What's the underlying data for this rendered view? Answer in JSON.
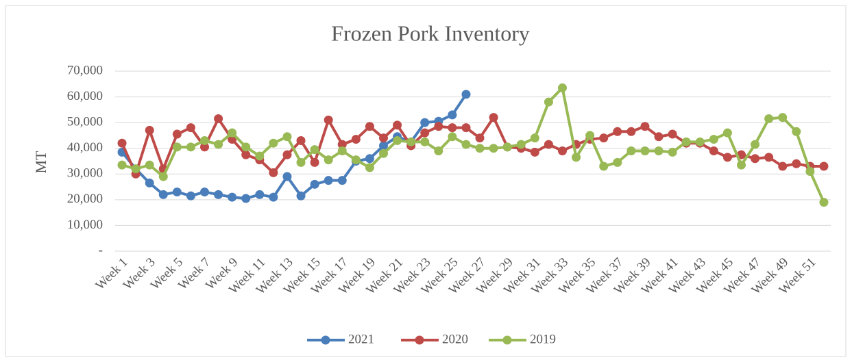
{
  "chart_data": {
    "type": "line",
    "title": "Frozen Pork Inventory",
    "y_label": "MT",
    "categories": [
      "Week 1",
      null,
      "Week 3",
      null,
      "Week 5",
      null,
      "Week 7",
      null,
      "Week 9",
      null,
      "Week 11",
      null,
      "Week 13",
      null,
      "Week 15",
      null,
      "Week 17",
      null,
      "Week 19",
      null,
      "Week 21",
      null,
      "Week 23",
      null,
      "Week 25",
      null,
      "Week 27",
      null,
      "Week 29",
      null,
      "Week 31",
      null,
      "Week 33",
      null,
      "Week 35",
      null,
      "Week 37",
      null,
      "Week 39",
      null,
      "Week 41",
      null,
      "Week 43",
      null,
      "Week 45",
      null,
      "Week 47",
      null,
      "Week 49",
      null,
      "Week 51",
      null
    ],
    "series": [
      {
        "name": "2021",
        "color": "#4a7ebb",
        "values": [
          38500,
          32000,
          26500,
          22000,
          23000,
          21500,
          23000,
          22000,
          21000,
          20500,
          22000,
          21000,
          29000,
          21500,
          26000,
          27500,
          27500,
          35000,
          36000,
          41000,
          44500,
          42500,
          50000,
          50500,
          53000,
          61000,
          null,
          null,
          null,
          null,
          null,
          null,
          null,
          null,
          null,
          null,
          null,
          null,
          null,
          null,
          null,
          null,
          null,
          null,
          null,
          null,
          null,
          null,
          null,
          null,
          null,
          null
        ]
      },
      {
        "name": "2020",
        "color": "#be4b48",
        "values": [
          42000,
          30000,
          47000,
          32000,
          45500,
          48000,
          40500,
          51500,
          43500,
          37500,
          35500,
          30500,
          37500,
          43000,
          34500,
          51000,
          41500,
          43500,
          48500,
          44000,
          49000,
          41000,
          46000,
          48500,
          48000,
          48000,
          44000,
          52000,
          40500,
          40000,
          38500,
          41500,
          39000,
          41500,
          43500,
          44000,
          46500,
          46500,
          48500,
          44500,
          45500,
          42000,
          42000,
          39000,
          36500,
          37500,
          36000,
          36500,
          33000,
          34000,
          33000,
          33000
        ]
      },
      {
        "name": "2019",
        "color": "#98b954",
        "values": [
          33500,
          32000,
          33500,
          29000,
          40500,
          40500,
          43000,
          41500,
          46000,
          40500,
          37000,
          42000,
          44500,
          34500,
          39500,
          35500,
          39000,
          35500,
          32500,
          38000,
          43000,
          42500,
          42500,
          39000,
          44500,
          41500,
          40000,
          40000,
          40500,
          41500,
          44000,
          58000,
          63500,
          36500,
          45000,
          33000,
          34500,
          39000,
          39000,
          39000,
          38500,
          42500,
          42500,
          43500,
          46000,
          33500,
          41500,
          51500,
          52000,
          46500,
          31000,
          19000
        ]
      }
    ],
    "ylim": [
      0,
      70000
    ],
    "yticks": [
      {
        "value": 0,
        "label": "-"
      },
      {
        "value": 10000,
        "label": "10,000"
      },
      {
        "value": 20000,
        "label": "20,000"
      },
      {
        "value": 30000,
        "label": "30,000"
      },
      {
        "value": 40000,
        "label": "40,000"
      },
      {
        "value": 50000,
        "label": "50,000"
      },
      {
        "value": 60000,
        "label": "60,000"
      },
      {
        "value": 70000,
        "label": "70,000"
      }
    ],
    "grid": true,
    "legend": "bottom"
  }
}
